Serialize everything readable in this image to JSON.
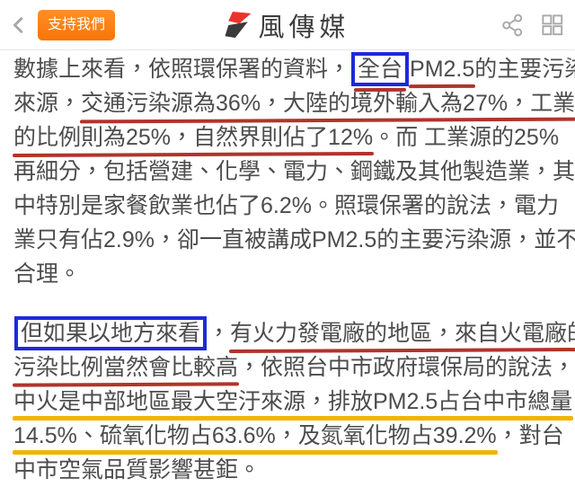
{
  "header": {
    "support_button_label": "支持我們",
    "logo_text": "風傳媒",
    "icons": {
      "back": "chevron-left",
      "share": "share-nodes",
      "apps": "grid-2x2"
    }
  },
  "colors": {
    "accent_orange": "#f87408",
    "accent_orange_light": "#ff9027",
    "underline_red": "#b0342b",
    "underline_yellow": "#f3b303",
    "box_blue": "#1d2ad9",
    "body_text": "#4c4c4c",
    "logo_red": "#e8352c",
    "logo_dark": "#3a3a3a",
    "icon_gray": "#a8a8a8"
  },
  "article": {
    "paragraphs": [
      {
        "lines": [
          [
            {
              "text": "數據上來看，依照環保署的資料，"
            },
            {
              "text": "全台",
              "marks": [
                "blue-box",
                "red-underline"
              ]
            },
            {
              "text": "PM2.5",
              "marks": [
                "red-underline"
              ]
            },
            {
              "text": "的主要污染"
            }
          ],
          [
            {
              "text": "來源，"
            },
            {
              "text": "交通污染源為36%，大陸的境外輸入為27%，工業",
              "marks": [
                "red-underline"
              ]
            }
          ],
          [
            {
              "text": "的比例則為25%，自然界則佔了12%",
              "marks": [
                "red-underline"
              ]
            },
            {
              "text": "。而 工業源的25%"
            }
          ],
          [
            {
              "text": "再細分，包括營建、化學、電力、鋼鐵及其他製造業，其"
            }
          ],
          [
            {
              "text": "中特別是家餐飲業也佔了6.2%。照環保署的說法，電力"
            }
          ],
          [
            {
              "text": "業只有佔2.9%，卻一直被講成PM2.5的主要污染源，並不"
            }
          ],
          [
            {
              "text": "合理。"
            }
          ]
        ]
      },
      {
        "lines": [
          [
            {
              "text": "但如果以地方來看",
              "marks": [
                "blue-box"
              ]
            },
            {
              "text": "，"
            },
            {
              "text": "有火力發電廠的地區，來自火電廠的",
              "marks": [
                "red-underline"
              ]
            }
          ],
          [
            {
              "text": "污染比例當然會比較高",
              "marks": [
                "red-underline"
              ]
            },
            {
              "text": "，依照台中市政府環保局的說法，"
            }
          ],
          [
            {
              "text": "中火是中部地區最大空汙來源，排放PM2.5占台中市總量",
              "marks": [
                "yellow-underline"
              ]
            }
          ],
          [
            {
              "text": "14.5%、硫氧化物占63.6%，及氮氧化物占39.2%",
              "marks": [
                "yellow-underline"
              ]
            },
            {
              "text": "，對台"
            }
          ],
          [
            {
              "text": "中市空氣品質影響甚鉅。"
            }
          ]
        ]
      }
    ]
  }
}
